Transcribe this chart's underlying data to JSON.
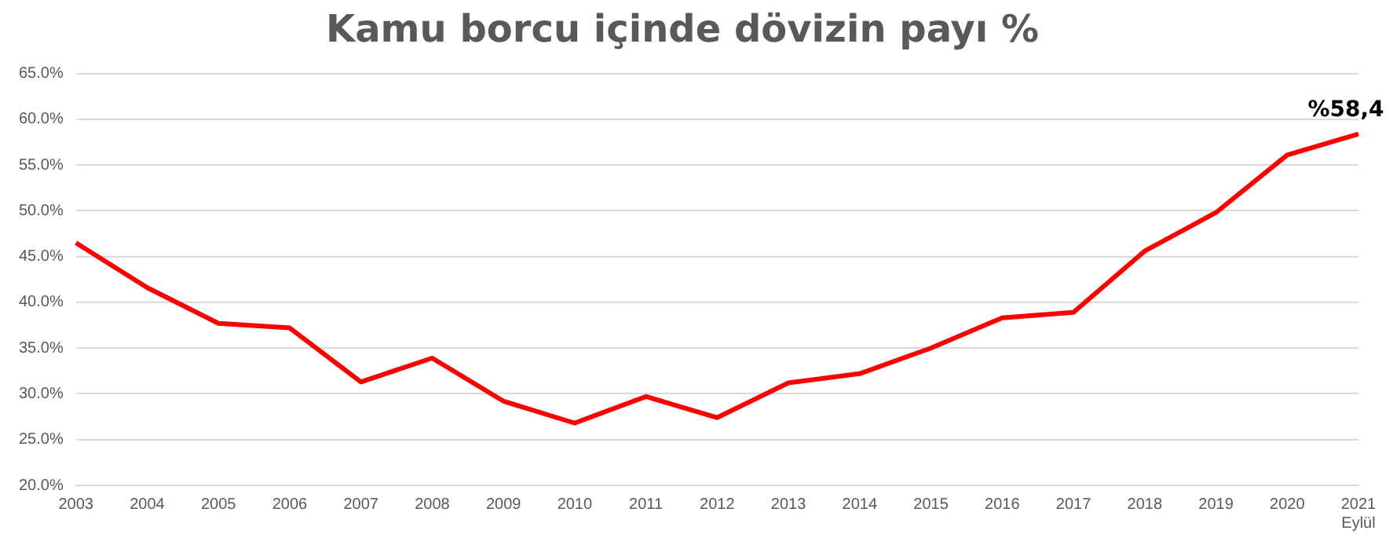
{
  "chart_data": {
    "type": "line",
    "title": "Kamu borcu içinde dövizin payı %",
    "categories": [
      "2003",
      "2004",
      "2005",
      "2006",
      "2007",
      "2008",
      "2009",
      "2010",
      "2011",
      "2012",
      "2013",
      "2014",
      "2015",
      "2016",
      "2017",
      "2018",
      "2019",
      "2020",
      "2021\nEylül"
    ],
    "series": [
      {
        "color": "#ff0000",
        "values": [
          46.5,
          41.6,
          37.7,
          37.2,
          31.3,
          33.9,
          29.2,
          26.8,
          29.7,
          27.4,
          31.2,
          32.2,
          35.0,
          38.3,
          38.9,
          45.6,
          49.8,
          56.1,
          58.4
        ],
        "value_labels": [
          null,
          null,
          null,
          null,
          null,
          null,
          null,
          null,
          null,
          null,
          null,
          null,
          null,
          null,
          null,
          null,
          null,
          null,
          "%58,4"
        ]
      }
    ],
    "ylim": [
      20,
      65
    ],
    "yticks": [
      {
        "value": 20,
        "label": "20.0%"
      },
      {
        "value": 25,
        "label": "25.0%"
      },
      {
        "value": 30,
        "label": "30.0%"
      },
      {
        "value": 35,
        "label": "35.0%"
      },
      {
        "value": 40,
        "label": "40.0%"
      },
      {
        "value": 45,
        "label": "45.0%"
      },
      {
        "value": 50,
        "label": "50.0%"
      },
      {
        "value": 55,
        "label": "55.0%"
      },
      {
        "value": 60,
        "label": "60.0%"
      },
      {
        "value": 65,
        "label": "65.0%"
      }
    ],
    "grid": "y",
    "legend": false,
    "marker": "none",
    "line_style": "solid"
  }
}
